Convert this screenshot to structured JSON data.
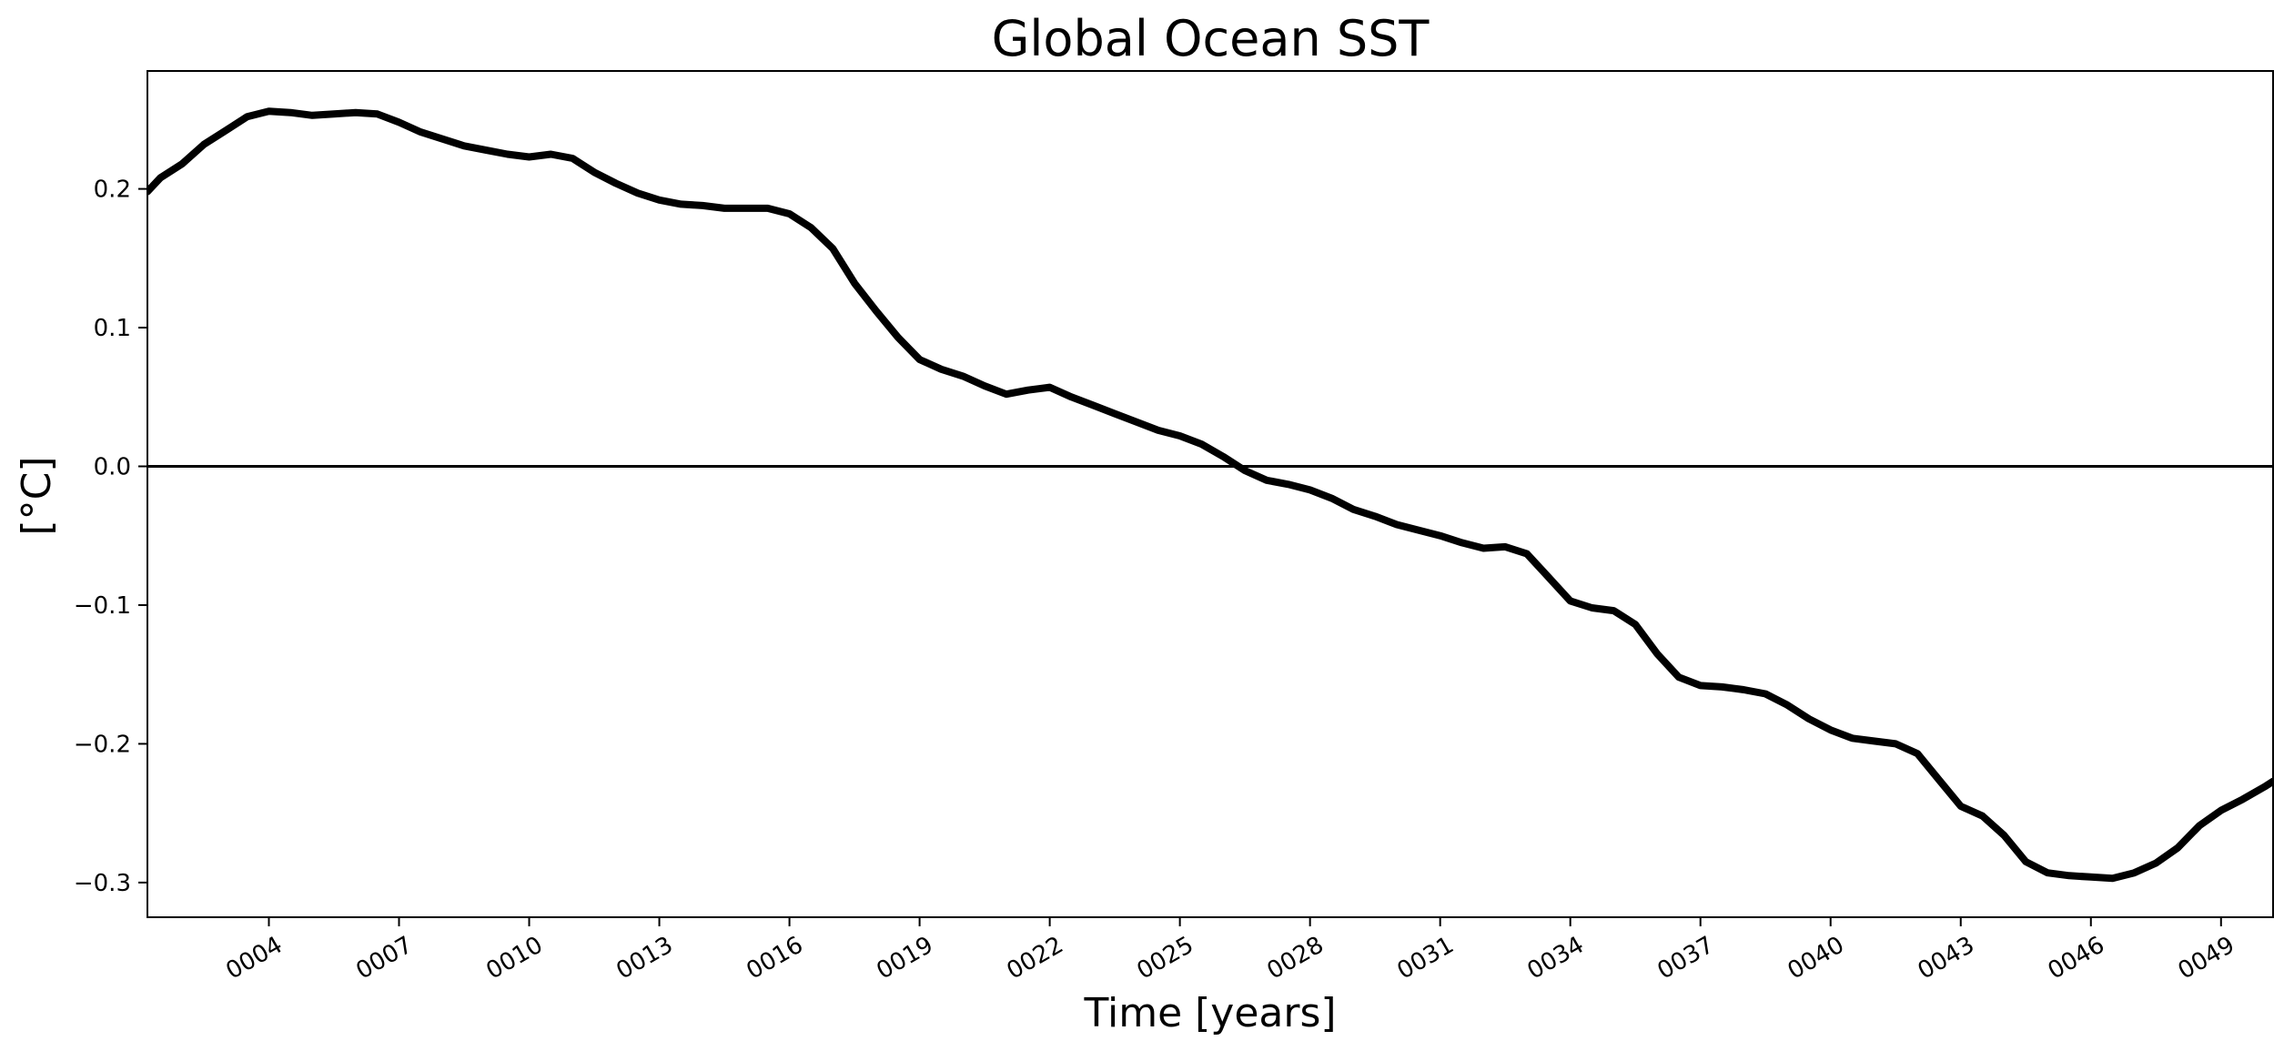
{
  "chart_data": {
    "type": "line",
    "title": "Global Ocean SST",
    "xlabel": "Time [years]",
    "ylabel": "[°C]",
    "xlim": [
      1.2,
      50.2
    ],
    "ylim": [
      -0.325,
      0.285
    ],
    "grid": false,
    "reference_line": 0.0,
    "x_ticks": [
      {
        "value": 4,
        "label": "0004"
      },
      {
        "value": 7,
        "label": "0007"
      },
      {
        "value": 10,
        "label": "0010"
      },
      {
        "value": 13,
        "label": "0013"
      },
      {
        "value": 16,
        "label": "0016"
      },
      {
        "value": 19,
        "label": "0019"
      },
      {
        "value": 22,
        "label": "0022"
      },
      {
        "value": 25,
        "label": "0025"
      },
      {
        "value": 28,
        "label": "0028"
      },
      {
        "value": 31,
        "label": "0031"
      },
      {
        "value": 34,
        "label": "0034"
      },
      {
        "value": 37,
        "label": "0037"
      },
      {
        "value": 40,
        "label": "0040"
      },
      {
        "value": 43,
        "label": "0043"
      },
      {
        "value": 46,
        "label": "0046"
      },
      {
        "value": 49,
        "label": "0049"
      }
    ],
    "y_ticks": [
      {
        "value": 0.2,
        "label": "0.2"
      },
      {
        "value": 0.1,
        "label": "0.1"
      },
      {
        "value": 0.0,
        "label": "0.0"
      },
      {
        "value": -0.1,
        "label": "−0.1"
      },
      {
        "value": -0.2,
        "label": "−0.2"
      },
      {
        "value": -0.3,
        "label": "−0.3"
      }
    ],
    "series": [
      {
        "name": "Global Ocean SST",
        "color": "#000000",
        "x": [
          1.2,
          1.5,
          2.0,
          2.5,
          3.0,
          3.5,
          4.0,
          4.5,
          5.0,
          5.5,
          6.0,
          6.5,
          7.0,
          7.5,
          8.0,
          8.5,
          9.0,
          9.5,
          10.0,
          10.5,
          11.0,
          11.5,
          12.0,
          12.5,
          13.0,
          13.5,
          14.0,
          14.5,
          15.0,
          15.5,
          16.0,
          16.5,
          17.0,
          17.5,
          18.0,
          18.5,
          19.0,
          19.5,
          20.0,
          20.5,
          21.0,
          21.5,
          22.0,
          22.5,
          23.0,
          23.5,
          24.0,
          24.5,
          25.0,
          25.5,
          26.0,
          26.5,
          27.0,
          27.5,
          28.0,
          28.5,
          29.0,
          29.5,
          30.0,
          30.5,
          31.0,
          31.5,
          32.0,
          32.5,
          33.0,
          33.5,
          34.0,
          34.5,
          35.0,
          35.5,
          36.0,
          36.5,
          37.0,
          37.5,
          38.0,
          38.5,
          39.0,
          39.5,
          40.0,
          40.5,
          41.0,
          41.5,
          42.0,
          42.5,
          43.0,
          43.5,
          44.0,
          44.5,
          45.0,
          45.5,
          46.0,
          46.5,
          47.0,
          47.5,
          48.0,
          48.5,
          49.0,
          49.5,
          50.0,
          50.2
        ],
        "values": [
          0.198,
          0.208,
          0.218,
          0.232,
          0.242,
          0.252,
          0.256,
          0.255,
          0.253,
          0.254,
          0.255,
          0.254,
          0.248,
          0.241,
          0.236,
          0.231,
          0.228,
          0.225,
          0.223,
          0.225,
          0.222,
          0.212,
          0.204,
          0.197,
          0.192,
          0.189,
          0.188,
          0.186,
          0.186,
          0.186,
          0.182,
          0.172,
          0.157,
          0.132,
          0.112,
          0.093,
          0.077,
          0.07,
          0.065,
          0.058,
          0.052,
          0.055,
          0.057,
          0.05,
          0.044,
          0.038,
          0.032,
          0.026,
          0.022,
          0.016,
          0.007,
          -0.003,
          -0.01,
          -0.013,
          -0.017,
          -0.023,
          -0.031,
          -0.036,
          -0.042,
          -0.046,
          -0.05,
          -0.055,
          -0.059,
          -0.058,
          -0.063,
          -0.08,
          -0.097,
          -0.102,
          -0.104,
          -0.114,
          -0.135,
          -0.152,
          -0.158,
          -0.159,
          -0.161,
          -0.164,
          -0.172,
          -0.182,
          -0.19,
          -0.196,
          -0.198,
          -0.2,
          -0.207,
          -0.226,
          -0.245,
          -0.252,
          -0.266,
          -0.285,
          -0.293,
          -0.295,
          -0.296,
          -0.297,
          -0.293,
          -0.286,
          -0.275,
          -0.259,
          -0.248,
          -0.24,
          -0.231,
          -0.227
        ]
      }
    ]
  }
}
